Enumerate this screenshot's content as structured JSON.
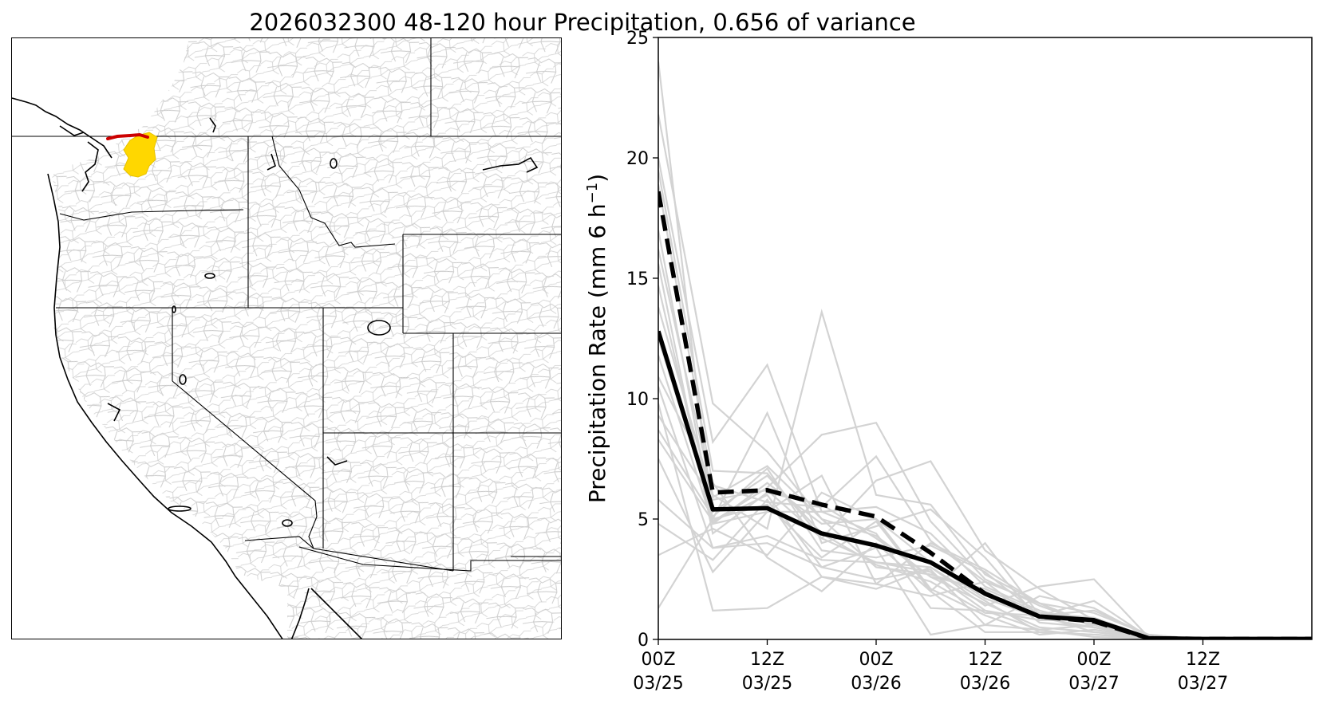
{
  "title": "2026032300 48-120 hour Precipitation, 0.656 of variance",
  "map": {
    "highlight_colors": {
      "basin": "#FFD700",
      "river": "#CC0000"
    },
    "line_colors": {
      "coast": "#000000",
      "state_borders": "#000000",
      "basins": "#C8C8C8"
    }
  },
  "chart_data": {
    "type": "line",
    "ylabel": "Precipitation Rate (mm 6 h",
    "ylabel_superscript": "−1",
    "ylabel_close": ")",
    "ylim": [
      0,
      25
    ],
    "xlim": [
      0,
      72
    ],
    "yticks": [
      0,
      5,
      10,
      15,
      20,
      25
    ],
    "xticks": [
      {
        "x": 0,
        "line1": "00Z",
        "line2": "03/25"
      },
      {
        "x": 12,
        "line1": "12Z",
        "line2": "03/25"
      },
      {
        "x": 24,
        "line1": "00Z",
        "line2": "03/26"
      },
      {
        "x": 36,
        "line1": "12Z",
        "line2": "03/26"
      },
      {
        "x": 48,
        "line1": "00Z",
        "line2": "03/27"
      },
      {
        "x": 60,
        "line1": "12Z",
        "line2": "03/27"
      }
    ],
    "grid": false,
    "x": [
      0,
      6,
      12,
      18,
      24,
      30,
      36,
      42,
      48,
      54,
      60,
      66,
      72
    ],
    "series": [
      {
        "style": "solid",
        "color": "#000000",
        "values": [
          12.8,
          5.4,
          5.45,
          4.4,
          3.9,
          3.2,
          1.9,
          0.95,
          0.8,
          0.05,
          0.02,
          0.02,
          0.02
        ]
      },
      {
        "style": "dashed",
        "color": "#000000",
        "values": [
          18.6,
          6.1,
          6.2,
          5.6,
          5.1,
          3.6,
          1.9,
          0.95,
          0.75,
          0.05,
          0.02,
          0.02,
          0.02
        ]
      }
    ],
    "ensemble_color": "#D3D3D3",
    "ensemble_members": [
      [
        24.0,
        4.8,
        6.5,
        4.8,
        5.0,
        3.2,
        1.7,
        0.9,
        0.8,
        0.1,
        0,
        0,
        0
      ],
      [
        21.8,
        9.8,
        7.8,
        5.0,
        4.3,
        2.6,
        2.1,
        1.1,
        0.9,
        0.1,
        0,
        0,
        0
      ],
      [
        20.0,
        8.2,
        11.4,
        5.3,
        5.5,
        4.4,
        2.2,
        1.2,
        0.6,
        0.1,
        0,
        0,
        0
      ],
      [
        19.5,
        7.0,
        6.9,
        4.2,
        3.2,
        2.8,
        1.2,
        0.8,
        0.9,
        0.1,
        0,
        0,
        0
      ],
      [
        18.9,
        6.4,
        5.7,
        5.5,
        7.6,
        4.1,
        2.4,
        0.7,
        0.5,
        0.1,
        0,
        0,
        0
      ],
      [
        17.0,
        5.0,
        9.4,
        4.0,
        4.7,
        5.4,
        3.4,
        0.8,
        0.8,
        0.1,
        0,
        0,
        0
      ],
      [
        16.2,
        6.0,
        4.6,
        13.6,
        6.0,
        5.6,
        2.7,
        1.5,
        1.1,
        0.2,
        0,
        0,
        0
      ],
      [
        15.6,
        4.4,
        6.1,
        5.6,
        4.2,
        2.6,
        1.5,
        0.5,
        0.3,
        0.1,
        0,
        0,
        0
      ],
      [
        14.7,
        4.9,
        6.3,
        8.5,
        9.0,
        4.9,
        2.5,
        1.4,
        0.6,
        0.1,
        0,
        0,
        0
      ],
      [
        13.8,
        5.9,
        7.2,
        5.0,
        3.0,
        2.7,
        2.0,
        0.9,
        0.5,
        0.1,
        0,
        0,
        0
      ],
      [
        12.5,
        5.3,
        6.8,
        4.4,
        3.1,
        2.4,
        1.1,
        1.0,
        1.2,
        0.2,
        0,
        0,
        0
      ],
      [
        11.8,
        4.8,
        5.3,
        6.8,
        2.3,
        1.8,
        2.4,
        1.5,
        0.6,
        0.1,
        0,
        0,
        0
      ],
      [
        10.9,
        6.5,
        3.4,
        2.0,
        4.0,
        2.0,
        4.0,
        1.0,
        0.3,
        0.1,
        0,
        0,
        0
      ],
      [
        10.5,
        3.8,
        4.3,
        3.3,
        3.2,
        3.0,
        1.4,
        2.2,
        2.5,
        0.1,
        0,
        0,
        0
      ],
      [
        9.8,
        1.2,
        1.3,
        2.6,
        2.1,
        3.0,
        1.6,
        0.3,
        0.2,
        0.1,
        0,
        0,
        0
      ],
      [
        9.3,
        5.8,
        6.2,
        4.2,
        6.6,
        7.4,
        3.7,
        2.1,
        0.8,
        0.1,
        0,
        0,
        0
      ],
      [
        8.7,
        5.1,
        7.1,
        3.7,
        3.4,
        3.9,
        2.8,
        1.0,
        1.6,
        0.1,
        0,
        0,
        0
      ],
      [
        8.3,
        4.9,
        6.0,
        3.0,
        2.5,
        2.9,
        0.6,
        1.8,
        1.3,
        0.1,
        0,
        0,
        0
      ],
      [
        7.5,
        2.8,
        5.3,
        5.3,
        4.4,
        1.3,
        1.2,
        0.4,
        0.6,
        0.1,
        0,
        0,
        0
      ],
      [
        5.8,
        3.8,
        4.0,
        3.0,
        3.8,
        0.2,
        0.6,
        0.4,
        0.1,
        0.05,
        0,
        0,
        0
      ],
      [
        4.8,
        3.3,
        5.8,
        2.6,
        2.3,
        4.0,
        2.9,
        1.5,
        0.5,
        0.1,
        0,
        0,
        0
      ],
      [
        3.5,
        4.6,
        3.5,
        6.1,
        5.0,
        2.1,
        1.0,
        0.2,
        0.4,
        0.1,
        0,
        0,
        0
      ],
      [
        1.3,
        5.0,
        5.6,
        3.4,
        4.9,
        2.0,
        0.3,
        0.3,
        0.2,
        0.05,
        0,
        0,
        0
      ]
    ]
  }
}
